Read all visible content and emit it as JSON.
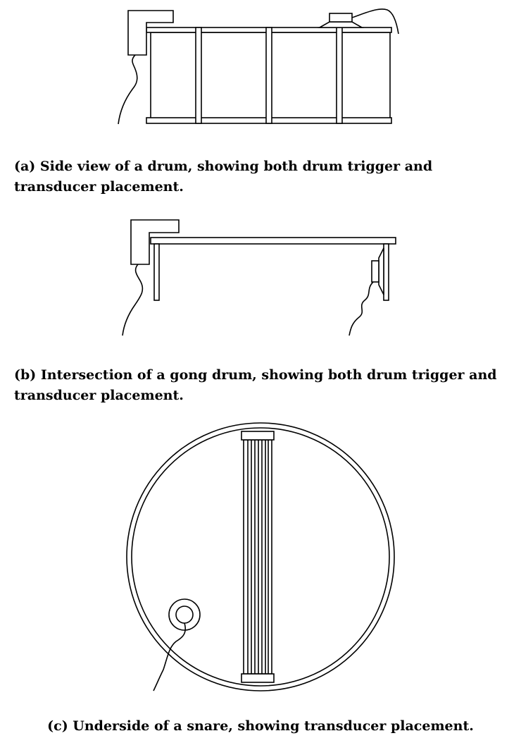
{
  "figures": [
    {
      "id": "a",
      "caption": "(a) Side view of a drum, showing both drum trigger and transducer placement."
    },
    {
      "id": "b",
      "caption": "(b) Intersection of a gong drum, showing both drum trigger and transducer placement."
    },
    {
      "id": "c",
      "caption": "(c) Underside of a snare, showing transducer placement."
    }
  ]
}
